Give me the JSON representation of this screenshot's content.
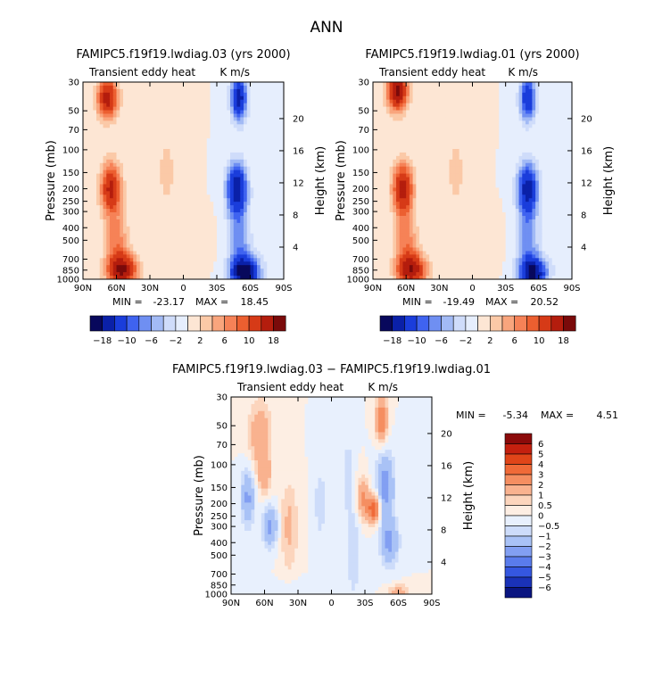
{
  "figure_title": "ANN",
  "chart_data": [
    {
      "type": "heatmap",
      "title": "FAMIPC5.f19f19.lwdiag.03 (yrs 2000)",
      "subtitle_left": "Transient eddy heat",
      "subtitle_right": "K m/s",
      "ylabel": "Pressure (mb)",
      "ylabel_right": "Height (km)",
      "x_ticks": [
        "90N",
        "60N",
        "30N",
        "0",
        "30S",
        "60S",
        "90S"
      ],
      "y_ticks": [
        "30",
        "50",
        "70",
        "100",
        "150",
        "200",
        "250",
        "300",
        "400",
        "500",
        "700",
        "850",
        "1000"
      ],
      "height_ticks": [
        "20",
        "16",
        "12",
        "8",
        "4"
      ],
      "stats": {
        "min_label": "MIN =",
        "min": "-23.17",
        "max_label": "MAX =",
        "max": "18.45"
      },
      "colorbar": {
        "orientation": "horizontal",
        "levels": [
          "-18",
          "-10",
          "-6",
          "-2",
          "2",
          "6",
          "10",
          "18"
        ],
        "colors": [
          "#08085c",
          "#0a20a8",
          "#1a3ddb",
          "#3f63f0",
          "#6f8ff2",
          "#a2baf5",
          "#cfdcfa",
          "#e6eefd",
          "#fde6d4",
          "#fbc9a7",
          "#f9a57d",
          "#f68257",
          "#ec5f30",
          "#d63a17",
          "#b41d0d",
          "#7a0a0a"
        ]
      },
      "field": "model-03"
    },
    {
      "type": "heatmap",
      "title": "FAMIPC5.f19f19.lwdiag.01 (yrs 2000)",
      "subtitle_left": "Transient eddy heat",
      "subtitle_right": "K m/s",
      "ylabel": "Pressure (mb)",
      "ylabel_right": "Height (km)",
      "x_ticks": [
        "90N",
        "60N",
        "30N",
        "0",
        "30S",
        "60S",
        "90S"
      ],
      "y_ticks": [
        "30",
        "50",
        "70",
        "100",
        "150",
        "200",
        "250",
        "300",
        "400",
        "500",
        "700",
        "850",
        "1000"
      ],
      "height_ticks": [
        "20",
        "16",
        "12",
        "8",
        "4"
      ],
      "stats": {
        "min_label": "MIN =",
        "min": "-19.49",
        "max_label": "MAX =",
        "max": "20.52"
      },
      "colorbar": {
        "orientation": "horizontal",
        "levels": [
          "-18",
          "-10",
          "-6",
          "-2",
          "2",
          "6",
          "10",
          "18"
        ],
        "colors": [
          "#08085c",
          "#0a20a8",
          "#1a3ddb",
          "#3f63f0",
          "#6f8ff2",
          "#a2baf5",
          "#cfdcfa",
          "#e6eefd",
          "#fde6d4",
          "#fbc9a7",
          "#f9a57d",
          "#f68257",
          "#ec5f30",
          "#d63a17",
          "#b41d0d",
          "#7a0a0a"
        ]
      },
      "field": "model-01"
    },
    {
      "type": "heatmap",
      "title": "FAMIPC5.f19f19.lwdiag.03 − FAMIPC5.f19f19.lwdiag.01",
      "subtitle_left": "Transient eddy heat",
      "subtitle_right": "K m/s",
      "ylabel": "Pressure (mb)",
      "ylabel_right": "Height (km)",
      "x_ticks": [
        "90N",
        "60N",
        "30N",
        "0",
        "30S",
        "60S",
        "90S"
      ],
      "y_ticks": [
        "30",
        "50",
        "70",
        "100",
        "150",
        "200",
        "250",
        "300",
        "400",
        "500",
        "700",
        "850",
        "1000"
      ],
      "height_ticks": [
        "20",
        "16",
        "12",
        "8",
        "4"
      ],
      "stats": {
        "min_label": "MIN =",
        "min": "-5.34",
        "max_label": "MAX =",
        "max": "4.51"
      },
      "colorbar": {
        "orientation": "vertical",
        "levels": [
          "6",
          "5",
          "4",
          "3",
          "2",
          "1",
          "0.5",
          "0",
          "−0.5",
          "−1",
          "−2",
          "−3",
          "−4",
          "−5",
          "−6"
        ],
        "colors": [
          "#8b0a0a",
          "#c4200f",
          "#e04519",
          "#f06a38",
          "#f58e61",
          "#f9b28f",
          "#fcd5bd",
          "#fdeee3",
          "#e8f0fd",
          "#cddcfa",
          "#a9c2f6",
          "#829ff2",
          "#5a7cec",
          "#3557e0",
          "#1a32b8",
          "#0a1580"
        ]
      },
      "field": "difference"
    }
  ]
}
